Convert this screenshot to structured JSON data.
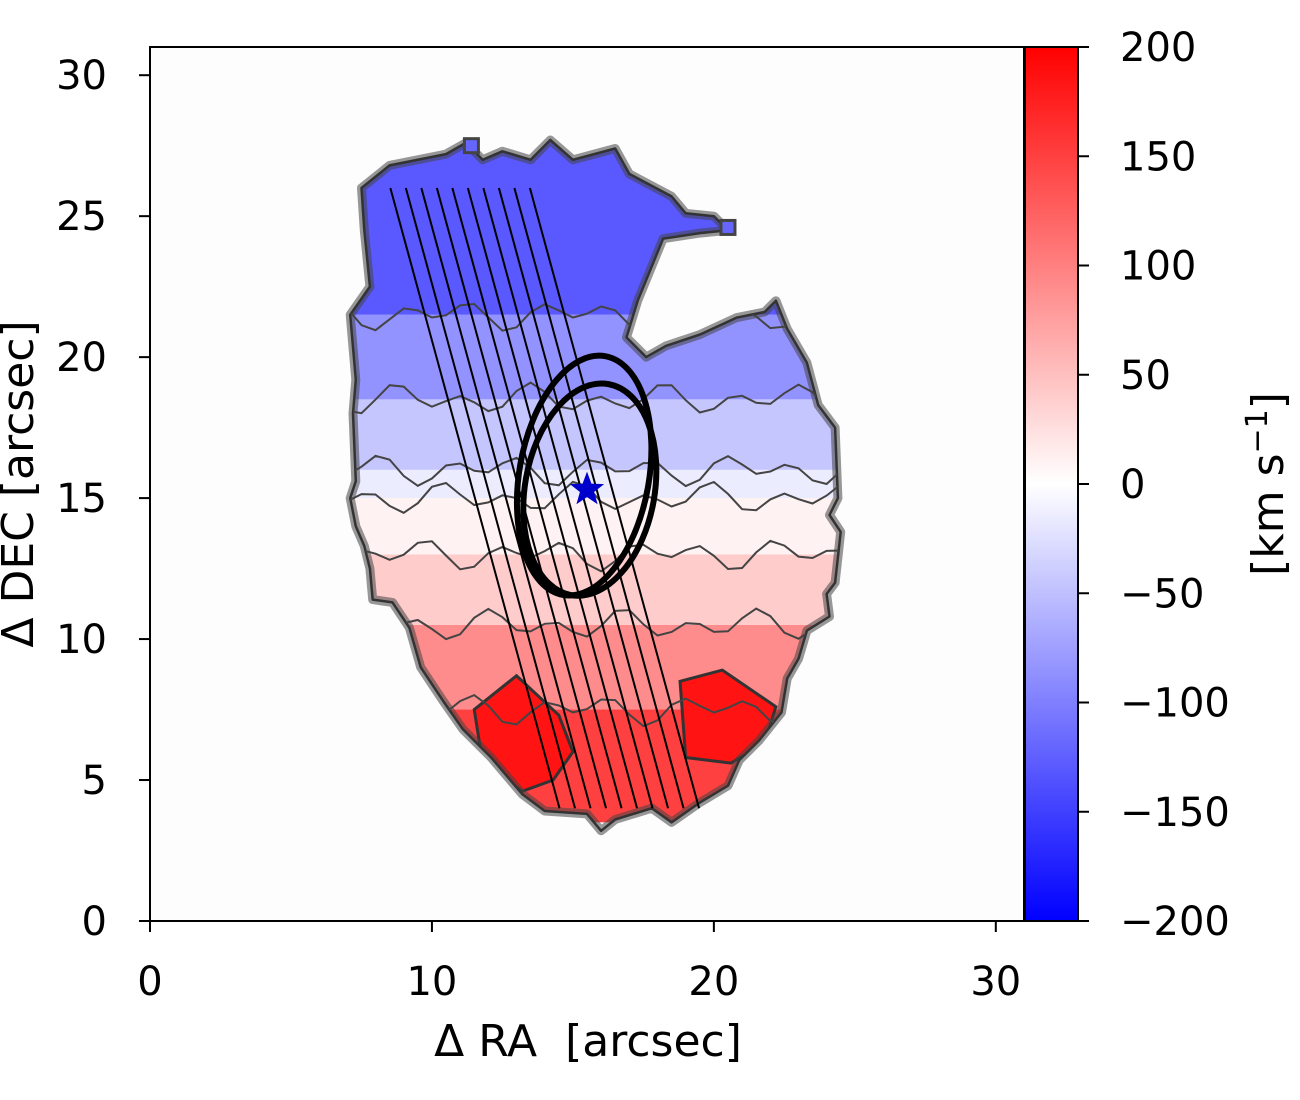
{
  "chart_data": {
    "type": "heatmap",
    "title": "",
    "xlabel": "Δ RA  [arcsec]",
    "ylabel": "Δ DEC [arcsec]",
    "xlim": [
      0,
      31
    ],
    "ylim": [
      0,
      31
    ],
    "xticks": [
      0,
      10,
      20,
      30
    ],
    "yticks": [
      0,
      5,
      10,
      15,
      20,
      25,
      30
    ],
    "colorbar": {
      "label": "[km s",
      "label_sup": "−1",
      "label_end": "]",
      "range": [
        -200,
        200
      ],
      "ticks": [
        200,
        150,
        100,
        50,
        0,
        -50,
        -100,
        -150,
        -200
      ],
      "tick_labels": [
        "200",
        "150",
        "100",
        "50",
        "0",
        "−50",
        "−100",
        "−150",
        "−200"
      ],
      "colormap": "bwr",
      "color_low": "#0000ff",
      "color_mid": "#ffffff",
      "color_high": "#ff0000"
    },
    "velocity_bands": [
      {
        "dec_from": 21.5,
        "dec_to": 28,
        "velocity": -130
      },
      {
        "dec_from": 18.5,
        "dec_to": 21.5,
        "velocity": -85
      },
      {
        "dec_from": 16,
        "dec_to": 18.5,
        "velocity": -45
      },
      {
        "dec_from": 15,
        "dec_to": 16,
        "velocity": -15
      },
      {
        "dec_from": 13,
        "dec_to": 15,
        "velocity": 10
      },
      {
        "dec_from": 10.5,
        "dec_to": 13,
        "velocity": 40
      },
      {
        "dec_from": 7.5,
        "dec_to": 10.5,
        "velocity": 90
      },
      {
        "dec_from": 3.5,
        "dec_to": 7.5,
        "velocity": 150
      }
    ],
    "center_marker": {
      "ra": 15.5,
      "dec": 15.3,
      "color": "#0000cc",
      "shape": "star"
    },
    "ellipses": [
      {
        "ra": 15.4,
        "dec": 15.8,
        "semi_minor": 2.3,
        "semi_major": 4.3,
        "tilt_deg": 10
      },
      {
        "ra": 15.6,
        "dec": 15.3,
        "semi_minor": 2.3,
        "semi_major": 3.8,
        "tilt_deg": 10
      }
    ],
    "slits": {
      "count": 10,
      "start": [
        11.0,
        26.0
      ],
      "end": [
        17.0,
        4.0
      ],
      "spacing": 0.55
    }
  }
}
